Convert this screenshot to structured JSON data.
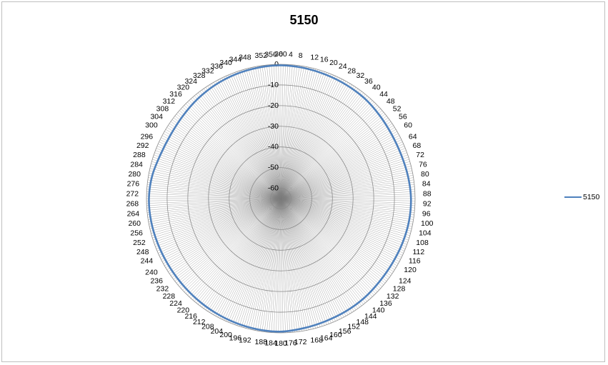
{
  "chart_data": {
    "type": "radar",
    "title": "5150",
    "angle_step_deg": 1,
    "angle_label_step_deg": 4,
    "angle_labels": [
      "0",
      "4",
      "8",
      "12",
      "16",
      "20",
      "24",
      "28",
      "32",
      "36",
      "40",
      "44",
      "48",
      "52",
      "56",
      "60",
      "64",
      "68",
      "72",
      "76",
      "80",
      "84",
      "88",
      "92",
      "96",
      "100",
      "104",
      "108",
      "112",
      "116",
      "120",
      "124",
      "128",
      "132",
      "136",
      "140",
      "144",
      "148",
      "152",
      "156",
      "160",
      "164",
      "168",
      "172",
      "176",
      "180",
      "184",
      "188",
      "192",
      "196",
      "200",
      "204",
      "208",
      "212",
      "216",
      "220",
      "224",
      "228",
      "232",
      "236",
      "240",
      "244",
      "248",
      "252",
      "256",
      "260",
      "264",
      "268",
      "272",
      "276",
      "280",
      "284",
      "288",
      "292",
      "296",
      "300",
      "304",
      "308",
      "312",
      "316",
      "320",
      "324",
      "328",
      "332",
      "336",
      "340",
      "344",
      "348",
      "352",
      "356",
      "360"
    ],
    "radial_ticks": [
      "0",
      "-10",
      "-20",
      "-30",
      "-40",
      "-50",
      "-60"
    ],
    "rlim": [
      -65,
      0
    ],
    "grid": true,
    "legend_position": "right",
    "series": [
      {
        "name": "5150",
        "color": "#4f81bd",
        "angles": [
          0,
          10,
          20,
          30,
          40,
          50,
          60,
          70,
          80,
          90,
          100,
          110,
          120,
          130,
          140,
          150,
          160,
          170,
          180,
          190,
          200,
          210,
          220,
          230,
          240,
          250,
          260,
          270,
          280,
          290,
          300,
          310,
          320,
          330,
          340,
          350
        ],
        "values": [
          -0.5,
          -0.8,
          -1.2,
          -1.5,
          -1.8,
          -2.5,
          -3.0,
          -3.0,
          -2.5,
          -2.0,
          -2.0,
          -2.3,
          -2.6,
          -2.6,
          -2.2,
          -2.0,
          -1.8,
          -1.3,
          -0.6,
          -0.7,
          -1.0,
          -1.3,
          -1.6,
          -1.8,
          -1.8,
          -1.6,
          -1.3,
          -1.2,
          -1.8,
          -3.0,
          -3.4,
          -3.0,
          -2.2,
          -1.5,
          -1.0,
          -0.7
        ]
      }
    ]
  }
}
